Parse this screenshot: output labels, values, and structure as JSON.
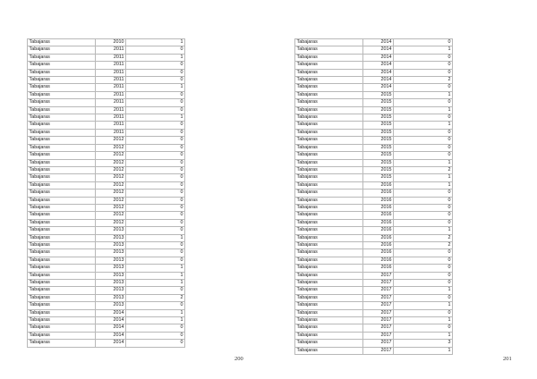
{
  "pages": [
    {
      "page_number": "200",
      "rows": [
        [
          "Tabajaras",
          "2010",
          "1"
        ],
        [
          "Tabajaras",
          "2011",
          "0"
        ],
        [
          "Tabajaras",
          "2011",
          "1"
        ],
        [
          "Tabajaras",
          "2011",
          "0"
        ],
        [
          "Tabajaras",
          "2011",
          "0"
        ],
        [
          "Tabajaras",
          "2011",
          "0"
        ],
        [
          "Tabajaras",
          "2011",
          "1"
        ],
        [
          "Tabajaras",
          "2011",
          "0"
        ],
        [
          "Tabajaras",
          "2011",
          "0"
        ],
        [
          "Tabajaras",
          "2011",
          "0"
        ],
        [
          "Tabajaras",
          "2011",
          "1"
        ],
        [
          "Tabajaras",
          "2011",
          "0"
        ],
        [
          "Tabajaras",
          "2011",
          "0"
        ],
        [
          "Tabajaras",
          "2012",
          "0"
        ],
        [
          "Tabajaras",
          "2012",
          "0"
        ],
        [
          "Tabajaras",
          "2012",
          "0"
        ],
        [
          "Tabajaras",
          "2012",
          "0"
        ],
        [
          "Tabajaras",
          "2012",
          "0"
        ],
        [
          "Tabajaras",
          "2012",
          "0"
        ],
        [
          "Tabajaras",
          "2012",
          "0"
        ],
        [
          "Tabajaras",
          "2012",
          "0"
        ],
        [
          "Tabajaras",
          "2012",
          "0"
        ],
        [
          "Tabajaras",
          "2012",
          "0"
        ],
        [
          "Tabajaras",
          "2012",
          "0"
        ],
        [
          "Tabajaras",
          "2012",
          "0"
        ],
        [
          "Tabajaras",
          "2013",
          "0"
        ],
        [
          "Tabajaras",
          "2013",
          "1"
        ],
        [
          "Tabajaras",
          "2013",
          "0"
        ],
        [
          "Tabajaras",
          "2013",
          "0"
        ],
        [
          "Tabajaras",
          "2013",
          "0"
        ],
        [
          "Tabajaras",
          "2013",
          "1"
        ],
        [
          "Tabajaras",
          "2013",
          "1"
        ],
        [
          "Tabajaras",
          "2013",
          "1"
        ],
        [
          "Tabajaras",
          "2013",
          "0"
        ],
        [
          "Tabajaras",
          "2013",
          "2"
        ],
        [
          "Tabajaras",
          "2013",
          "0"
        ],
        [
          "Tabajaras",
          "2014",
          "1"
        ],
        [
          "Tabajaras",
          "2014",
          "1"
        ],
        [
          "Tabajaras",
          "2014",
          "0"
        ],
        [
          "Tabajaras",
          "2014",
          "0"
        ],
        [
          "Tabajaras",
          "2014",
          "0"
        ]
      ]
    },
    {
      "page_number": "201",
      "rows": [
        [
          "Tabajaras",
          "2014",
          "0"
        ],
        [
          "Tabajaras",
          "2014",
          "1"
        ],
        [
          "Tabajaras",
          "2014",
          "0"
        ],
        [
          "Tabajaras",
          "2014",
          "0"
        ],
        [
          "Tabajaras",
          "2014",
          "0"
        ],
        [
          "Tabajaras",
          "2014",
          "2"
        ],
        [
          "Tabajaras",
          "2014",
          "0"
        ],
        [
          "Tabajaras",
          "2015",
          "1"
        ],
        [
          "Tabajaras",
          "2015",
          "0"
        ],
        [
          "Tabajaras",
          "2015",
          "1"
        ],
        [
          "Tabajaras",
          "2015",
          "0"
        ],
        [
          "Tabajaras",
          "2015",
          "1"
        ],
        [
          "Tabajaras",
          "2015",
          "0"
        ],
        [
          "Tabajaras",
          "2015",
          "0"
        ],
        [
          "Tabajaras",
          "2015",
          "0"
        ],
        [
          "Tabajaras",
          "2015",
          "0"
        ],
        [
          "Tabajaras",
          "2015",
          "1"
        ],
        [
          "Tabajaras",
          "2015",
          "2"
        ],
        [
          "Tabajaras",
          "2015",
          "1"
        ],
        [
          "Tabajaras",
          "2016",
          "1"
        ],
        [
          "Tabajaras",
          "2016",
          "0"
        ],
        [
          "Tabajaras",
          "2016",
          "0"
        ],
        [
          "Tabajaras",
          "2016",
          "0"
        ],
        [
          "Tabajaras",
          "2016",
          "0"
        ],
        [
          "Tabajaras",
          "2016",
          "0"
        ],
        [
          "Tabajaras",
          "2016",
          "1"
        ],
        [
          "Tabajaras",
          "2016",
          "2"
        ],
        [
          "Tabajaras",
          "2016",
          "2"
        ],
        [
          "Tabajaras",
          "2016",
          "0"
        ],
        [
          "Tabajaras",
          "2016",
          "0"
        ],
        [
          "Tabajaras",
          "2016",
          "0"
        ],
        [
          "Tabajaras",
          "2017",
          "0"
        ],
        [
          "Tabajaras",
          "2017",
          "0"
        ],
        [
          "Tabajaras",
          "2017",
          "1"
        ],
        [
          "Tabajaras",
          "2017",
          "0"
        ],
        [
          "Tabajaras",
          "2017",
          "1"
        ],
        [
          "Tabajaras",
          "2017",
          "0"
        ],
        [
          "Tabajaras",
          "2017",
          "1"
        ],
        [
          "Tabajaras",
          "2017",
          "0"
        ],
        [
          "Tabajaras",
          "2017",
          "1"
        ],
        [
          "Tabajaras",
          "2017",
          "3"
        ],
        [
          "Tabajaras",
          "2017",
          "1"
        ]
      ]
    }
  ]
}
